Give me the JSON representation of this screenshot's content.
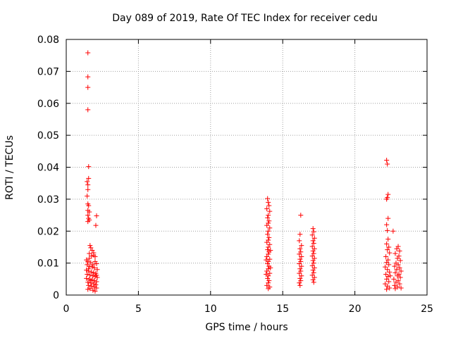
{
  "chart_data": {
    "type": "scatter",
    "title": "Day 089 of 2019, Rate Of TEC Index for receiver cedu",
    "xlabel": "GPS time / hours",
    "ylabel": "ROTI / TECUs",
    "xlim": [
      0,
      25
    ],
    "ylim": [
      0,
      0.08
    ],
    "x_ticks": [
      0,
      5,
      10,
      15,
      20,
      25
    ],
    "y_ticks": [
      0,
      0.01,
      0.02,
      0.03,
      0.04,
      0.05,
      0.06,
      0.07,
      0.08
    ],
    "grid": true,
    "marker": "+",
    "color": "#ff0000",
    "series": [
      {
        "points": [
          [
            1.5,
            0.0758
          ],
          [
            1.5,
            0.0683
          ],
          [
            1.5,
            0.065
          ],
          [
            1.5,
            0.058
          ],
          [
            1.55,
            0.0402
          ],
          [
            1.45,
            0.0355
          ],
          [
            1.5,
            0.0345
          ],
          [
            1.55,
            0.0365
          ],
          [
            1.5,
            0.033
          ],
          [
            1.45,
            0.031
          ],
          [
            1.5,
            0.0285
          ],
          [
            1.55,
            0.028
          ],
          [
            1.5,
            0.0265
          ],
          [
            1.6,
            0.026
          ],
          [
            1.5,
            0.025
          ],
          [
            1.55,
            0.024
          ],
          [
            1.6,
            0.0235
          ],
          [
            1.5,
            0.023
          ],
          [
            2.1,
            0.0248
          ],
          [
            2.05,
            0.0218
          ],
          [
            1.65,
            0.0155
          ],
          [
            1.7,
            0.0148
          ],
          [
            1.8,
            0.014
          ],
          [
            1.6,
            0.013
          ],
          [
            1.9,
            0.0125
          ],
          [
            2.0,
            0.012
          ],
          [
            1.4,
            0.011
          ],
          [
            1.5,
            0.0105
          ],
          [
            1.7,
            0.0101
          ],
          [
            2.1,
            0.0098
          ],
          [
            1.45,
            0.0095
          ],
          [
            1.6,
            0.009
          ],
          [
            1.8,
            0.0088
          ],
          [
            1.95,
            0.0085
          ],
          [
            2.15,
            0.008
          ],
          [
            1.4,
            0.0078
          ],
          [
            1.55,
            0.0075
          ],
          [
            1.75,
            0.0072
          ],
          [
            1.9,
            0.007
          ],
          [
            2.05,
            0.0068
          ],
          [
            1.45,
            0.0065
          ],
          [
            1.65,
            0.0062
          ],
          [
            1.85,
            0.006
          ],
          [
            2.0,
            0.0058
          ],
          [
            2.15,
            0.0055
          ],
          [
            1.4,
            0.0052
          ],
          [
            1.6,
            0.005
          ],
          [
            1.8,
            0.0048
          ],
          [
            1.95,
            0.0045
          ],
          [
            2.1,
            0.0042
          ],
          [
            1.5,
            0.004
          ],
          [
            1.7,
            0.0038
          ],
          [
            1.9,
            0.0035
          ],
          [
            2.05,
            0.0032
          ],
          [
            1.55,
            0.003
          ],
          [
            1.75,
            0.0028
          ],
          [
            1.95,
            0.0025
          ],
          [
            2.1,
            0.0022
          ],
          [
            1.65,
            0.002
          ],
          [
            1.85,
            0.0015
          ],
          [
            2.0,
            0.0012
          ],
          [
            1.5,
            0.0018
          ],
          [
            1.7,
            0.0045
          ],
          [
            1.85,
            0.0095
          ],
          [
            2.0,
            0.0105
          ],
          [
            1.6,
            0.0115
          ],
          [
            1.75,
            0.0122
          ],
          [
            1.9,
            0.0132
          ],
          [
            1.55,
            0.0082
          ],
          [
            2.1,
            0.0062
          ],
          [
            13.95,
            0.0302
          ],
          [
            14.0,
            0.029
          ],
          [
            14.05,
            0.028
          ],
          [
            13.9,
            0.027
          ],
          [
            14.1,
            0.0262
          ],
          [
            14.0,
            0.025
          ],
          [
            13.95,
            0.0242
          ],
          [
            14.05,
            0.0232
          ],
          [
            14.0,
            0.0225
          ],
          [
            13.9,
            0.0218
          ],
          [
            14.1,
            0.021
          ],
          [
            14.0,
            0.02
          ],
          [
            13.95,
            0.019
          ],
          [
            14.05,
            0.018
          ],
          [
            14.0,
            0.0172
          ],
          [
            13.9,
            0.0165
          ],
          [
            14.1,
            0.0158
          ],
          [
            14.0,
            0.015
          ],
          [
            13.95,
            0.0142
          ],
          [
            14.05,
            0.0135
          ],
          [
            14.0,
            0.0128
          ],
          [
            13.9,
            0.012
          ],
          [
            14.1,
            0.0112
          ],
          [
            14.0,
            0.0105
          ],
          [
            13.95,
            0.0098
          ],
          [
            14.05,
            0.009
          ],
          [
            14.0,
            0.0082
          ],
          [
            13.9,
            0.0075
          ],
          [
            14.1,
            0.0068
          ],
          [
            14.0,
            0.006
          ],
          [
            13.95,
            0.0052
          ],
          [
            14.05,
            0.0045
          ],
          [
            14.0,
            0.0038
          ],
          [
            13.9,
            0.003
          ],
          [
            14.1,
            0.0025
          ],
          [
            14.0,
            0.002
          ],
          [
            14.15,
            0.0085
          ],
          [
            13.85,
            0.011
          ],
          [
            14.15,
            0.014
          ],
          [
            13.85,
            0.0065
          ],
          [
            16.25,
            0.025
          ],
          [
            16.2,
            0.019
          ],
          [
            16.15,
            0.017
          ],
          [
            16.3,
            0.0155
          ],
          [
            16.2,
            0.0145
          ],
          [
            16.25,
            0.0135
          ],
          [
            16.15,
            0.0128
          ],
          [
            16.3,
            0.012
          ],
          [
            16.2,
            0.0112
          ],
          [
            16.25,
            0.0105
          ],
          [
            16.15,
            0.0098
          ],
          [
            16.3,
            0.009
          ],
          [
            16.2,
            0.0082
          ],
          [
            16.25,
            0.0075
          ],
          [
            16.15,
            0.0068
          ],
          [
            16.3,
            0.006
          ],
          [
            16.2,
            0.0052
          ],
          [
            16.25,
            0.0045
          ],
          [
            16.15,
            0.0038
          ],
          [
            16.2,
            0.003
          ],
          [
            17.1,
            0.0208
          ],
          [
            17.15,
            0.0198
          ],
          [
            17.05,
            0.0188
          ],
          [
            17.2,
            0.0178
          ],
          [
            17.1,
            0.017
          ],
          [
            17.15,
            0.0162
          ],
          [
            17.05,
            0.0152
          ],
          [
            17.2,
            0.0145
          ],
          [
            17.1,
            0.0138
          ],
          [
            17.15,
            0.013
          ],
          [
            17.05,
            0.0122
          ],
          [
            17.2,
            0.0115
          ],
          [
            17.1,
            0.0108
          ],
          [
            17.15,
            0.01
          ],
          [
            17.05,
            0.0092
          ],
          [
            17.2,
            0.0085
          ],
          [
            17.1,
            0.0078
          ],
          [
            17.15,
            0.007
          ],
          [
            17.05,
            0.0062
          ],
          [
            17.2,
            0.0055
          ],
          [
            17.1,
            0.0048
          ],
          [
            17.15,
            0.004
          ],
          [
            22.2,
            0.0422
          ],
          [
            22.25,
            0.041
          ],
          [
            22.3,
            0.0315
          ],
          [
            22.25,
            0.0305
          ],
          [
            22.2,
            0.03
          ],
          [
            22.3,
            0.024
          ],
          [
            22.2,
            0.022
          ],
          [
            22.25,
            0.0202
          ],
          [
            22.65,
            0.02
          ],
          [
            22.3,
            0.0175
          ],
          [
            22.2,
            0.016
          ],
          [
            22.35,
            0.015
          ],
          [
            22.25,
            0.0142
          ],
          [
            22.4,
            0.0132
          ],
          [
            22.15,
            0.012
          ],
          [
            22.3,
            0.011
          ],
          [
            22.2,
            0.0102
          ],
          [
            22.35,
            0.0095
          ],
          [
            22.1,
            0.0088
          ],
          [
            22.25,
            0.008
          ],
          [
            22.4,
            0.0072
          ],
          [
            22.15,
            0.0065
          ],
          [
            22.3,
            0.0058
          ],
          [
            22.2,
            0.005
          ],
          [
            22.35,
            0.0042
          ],
          [
            22.1,
            0.0035
          ],
          [
            22.25,
            0.0028
          ],
          [
            22.4,
            0.0022
          ],
          [
            22.2,
            0.0018
          ],
          [
            22.45,
            0.006
          ],
          [
            23.0,
            0.0152
          ],
          [
            22.9,
            0.0145
          ],
          [
            23.1,
            0.0138
          ],
          [
            22.8,
            0.013
          ],
          [
            23.05,
            0.0122
          ],
          [
            22.95,
            0.0115
          ],
          [
            23.15,
            0.0108
          ],
          [
            22.85,
            0.01
          ],
          [
            23.0,
            0.0095
          ],
          [
            22.75,
            0.009
          ],
          [
            23.1,
            0.0085
          ],
          [
            22.9,
            0.008
          ],
          [
            23.2,
            0.0075
          ],
          [
            22.8,
            0.007
          ],
          [
            23.05,
            0.0065
          ],
          [
            22.95,
            0.006
          ],
          [
            23.15,
            0.0055
          ],
          [
            22.7,
            0.005
          ],
          [
            23.0,
            0.0045
          ],
          [
            22.85,
            0.004
          ],
          [
            23.1,
            0.0035
          ],
          [
            22.75,
            0.003
          ],
          [
            22.95,
            0.0025
          ],
          [
            23.2,
            0.0022
          ],
          [
            22.8,
            0.002
          ]
        ]
      }
    ]
  }
}
